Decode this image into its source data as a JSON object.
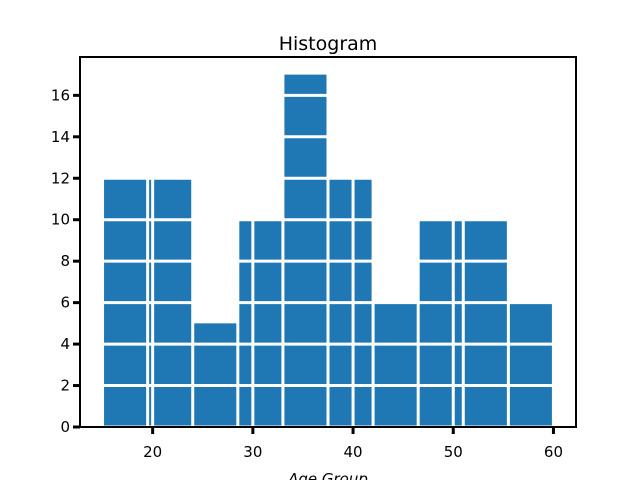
{
  "chart_data": {
    "type": "histogram",
    "title": "Histogram",
    "x_label": "Age Group",
    "bins": [
      15,
      19.5,
      24,
      28.5,
      33,
      37.5,
      42,
      46.5,
      51,
      55.5,
      60
    ],
    "values": [
      12,
      12,
      5,
      10,
      17,
      12,
      6,
      10,
      10,
      6
    ],
    "color": "#1f77b4",
    "xlim": [
      12.75,
      62.25
    ],
    "xticks": [
      20,
      30,
      40,
      50,
      60
    ],
    "ylim": [
      0,
      17.85
    ],
    "yticks": [
      0,
      2,
      4,
      6,
      8,
      10,
      12,
      14,
      16
    ],
    "grid": true,
    "grid_color": "#ffffff"
  }
}
